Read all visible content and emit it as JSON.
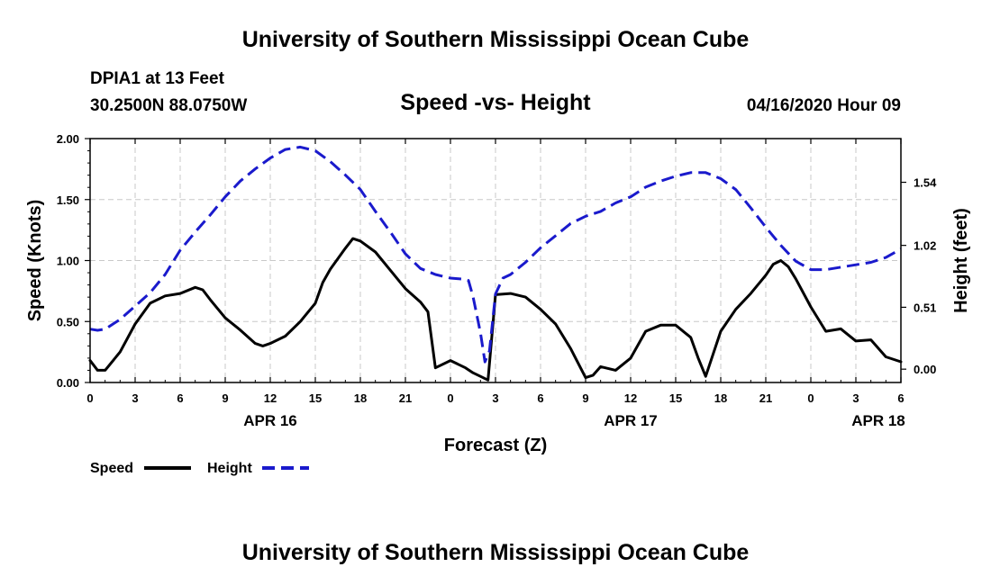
{
  "header": {
    "title": "University of Southern Mississippi Ocean Cube",
    "station": "DPIA1 at 13 Feet",
    "coords": "30.2500N 88.0750W",
    "subtitle": "Speed -vs- Height",
    "datetime": "04/16/2020 Hour 09"
  },
  "footer": {
    "title": "University of Southern Mississippi Ocean Cube"
  },
  "colors": {
    "speed": "#000000",
    "height": "#1a1acc",
    "grid": "#c8c8c8"
  },
  "chart_data": {
    "type": "line",
    "xlabel": "Forecast (Z)",
    "ylabel": "Speed (Knots)",
    "y2label": "Height (feet)",
    "xlim": [
      0,
      54
    ],
    "ylim": [
      0,
      2
    ],
    "y2lim": [
      -0.11,
      1.9
    ],
    "x_ticks": [
      0,
      3,
      6,
      9,
      12,
      15,
      18,
      21,
      24,
      27,
      30,
      33,
      36,
      39,
      42,
      45,
      48,
      51,
      54
    ],
    "x_tick_labels": [
      "0",
      "3",
      "6",
      "9",
      "12",
      "15",
      "18",
      "21",
      "0",
      "3",
      "6",
      "9",
      "12",
      "15",
      "18",
      "21",
      "0",
      "3",
      "6"
    ],
    "y_ticks": [
      0,
      0.5,
      1,
      1.5,
      2
    ],
    "y_tick_labels": [
      "0.00",
      "0.50",
      "1.00",
      "1.50",
      "2.00"
    ],
    "y2_ticks": [
      0,
      0.51,
      1.02,
      1.54
    ],
    "y2_tick_labels": [
      "0.00",
      "0.51",
      "1.02",
      "1.54"
    ],
    "date_labels": [
      {
        "x": 12,
        "label": "APR 16"
      },
      {
        "x": 36,
        "label": "APR 17"
      },
      {
        "x": 52.5,
        "label": "APR 18"
      }
    ],
    "legend": [
      {
        "name": "Speed",
        "style": "solid"
      },
      {
        "name": "Height",
        "style": "dashed"
      }
    ],
    "series": [
      {
        "name": "Speed",
        "axis": "left",
        "style": "solid",
        "points": [
          [
            0,
            0.18
          ],
          [
            0.5,
            0.1
          ],
          [
            1,
            0.1
          ],
          [
            2,
            0.25
          ],
          [
            3,
            0.48
          ],
          [
            4,
            0.65
          ],
          [
            5,
            0.71
          ],
          [
            6,
            0.73
          ],
          [
            7,
            0.78
          ],
          [
            7.5,
            0.76
          ],
          [
            8,
            0.68
          ],
          [
            9,
            0.53
          ],
          [
            10,
            0.43
          ],
          [
            11,
            0.32
          ],
          [
            11.5,
            0.3
          ],
          [
            12,
            0.32
          ],
          [
            13,
            0.38
          ],
          [
            14,
            0.5
          ],
          [
            15,
            0.65
          ],
          [
            15.5,
            0.82
          ],
          [
            16,
            0.93
          ],
          [
            17,
            1.1
          ],
          [
            17.5,
            1.18
          ],
          [
            18,
            1.16
          ],
          [
            19,
            1.07
          ],
          [
            20,
            0.92
          ],
          [
            21,
            0.77
          ],
          [
            22,
            0.66
          ],
          [
            22.5,
            0.58
          ],
          [
            23,
            0.12
          ],
          [
            24,
            0.18
          ],
          [
            25,
            0.12
          ],
          [
            25.5,
            0.08
          ],
          [
            26,
            0.05
          ],
          [
            26.5,
            0.02
          ],
          [
            27,
            0.72
          ],
          [
            28,
            0.73
          ],
          [
            29,
            0.7
          ],
          [
            30,
            0.6
          ],
          [
            31,
            0.48
          ],
          [
            32,
            0.28
          ],
          [
            33,
            0.04
          ],
          [
            33.5,
            0.06
          ],
          [
            34,
            0.13
          ],
          [
            35,
            0.1
          ],
          [
            36,
            0.2
          ],
          [
            37,
            0.42
          ],
          [
            38,
            0.47
          ],
          [
            39,
            0.47
          ],
          [
            40,
            0.37
          ],
          [
            40.5,
            0.2
          ],
          [
            41,
            0.05
          ],
          [
            42,
            0.42
          ],
          [
            43,
            0.6
          ],
          [
            44,
            0.73
          ],
          [
            45,
            0.88
          ],
          [
            45.5,
            0.97
          ],
          [
            46,
            1.0
          ],
          [
            46.5,
            0.95
          ],
          [
            47,
            0.85
          ],
          [
            48,
            0.62
          ],
          [
            49,
            0.42
          ],
          [
            50,
            0.44
          ],
          [
            51,
            0.34
          ],
          [
            52,
            0.35
          ],
          [
            53,
            0.21
          ],
          [
            54,
            0.17
          ]
        ]
      },
      {
        "name": "Height",
        "axis": "right",
        "style": "dashed",
        "points": [
          [
            0,
            0.33
          ],
          [
            0.5,
            0.32
          ],
          [
            1,
            0.33
          ],
          [
            2,
            0.41
          ],
          [
            3,
            0.52
          ],
          [
            4,
            0.63
          ],
          [
            5,
            0.78
          ],
          [
            6,
            0.98
          ],
          [
            7,
            1.13
          ],
          [
            8,
            1.27
          ],
          [
            9,
            1.42
          ],
          [
            10,
            1.55
          ],
          [
            11,
            1.65
          ],
          [
            12,
            1.74
          ],
          [
            13,
            1.81
          ],
          [
            14,
            1.83
          ],
          [
            15,
            1.8
          ],
          [
            16,
            1.71
          ],
          [
            17,
            1.6
          ],
          [
            18,
            1.48
          ],
          [
            19,
            1.3
          ],
          [
            20,
            1.13
          ],
          [
            21,
            0.95
          ],
          [
            22,
            0.83
          ],
          [
            23,
            0.78
          ],
          [
            24,
            0.75
          ],
          [
            25,
            0.74
          ],
          [
            25.2,
            0.73
          ],
          [
            25.5,
            0.6
          ],
          [
            26,
            0.3
          ],
          [
            26.3,
            0.06
          ],
          [
            26.6,
            0.15
          ],
          [
            27,
            0.62
          ],
          [
            27.5,
            0.75
          ],
          [
            28,
            0.78
          ],
          [
            29,
            0.88
          ],
          [
            30,
            1.0
          ],
          [
            31,
            1.1
          ],
          [
            32,
            1.2
          ],
          [
            33,
            1.26
          ],
          [
            34,
            1.3
          ],
          [
            35,
            1.37
          ],
          [
            36,
            1.42
          ],
          [
            37,
            1.5
          ],
          [
            38,
            1.55
          ],
          [
            39,
            1.59
          ],
          [
            40,
            1.62
          ],
          [
            41,
            1.62
          ],
          [
            42,
            1.57
          ],
          [
            43,
            1.48
          ],
          [
            44,
            1.33
          ],
          [
            45,
            1.17
          ],
          [
            46,
            1.02
          ],
          [
            47,
            0.89
          ],
          [
            48,
            0.82
          ],
          [
            49,
            0.82
          ],
          [
            50,
            0.84
          ],
          [
            51,
            0.86
          ],
          [
            52,
            0.88
          ],
          [
            53,
            0.92
          ],
          [
            54,
            0.99
          ]
        ]
      }
    ]
  }
}
